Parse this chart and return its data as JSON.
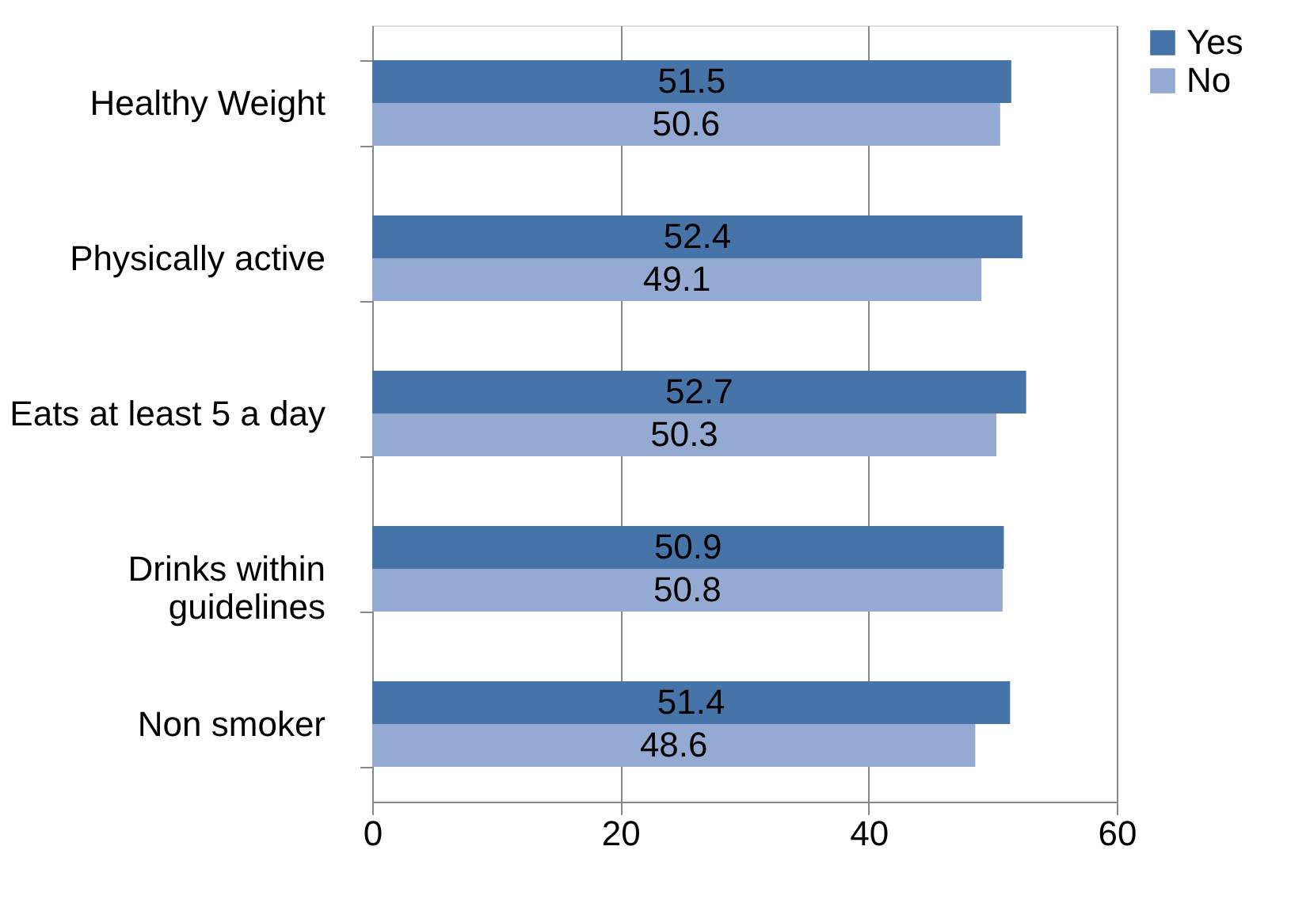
{
  "chart_data": {
    "type": "bar",
    "orientation": "horizontal",
    "categories": [
      "Healthy Weight",
      "Physically active",
      "Eats at least 5 a day",
      "Drinks within guidelines",
      "Non smoker"
    ],
    "series": [
      {
        "name": "Yes",
        "color": "#4673a8",
        "values": [
          51.5,
          52.4,
          52.7,
          50.9,
          51.4
        ]
      },
      {
        "name": "No",
        "color": "#94aad2",
        "values": [
          50.6,
          49.1,
          50.3,
          50.8,
          48.6
        ]
      }
    ],
    "xlim": [
      0,
      60
    ],
    "xticks": [
      0,
      20,
      40,
      60
    ],
    "grid": "x",
    "legend": "top right",
    "data_labels": true
  }
}
